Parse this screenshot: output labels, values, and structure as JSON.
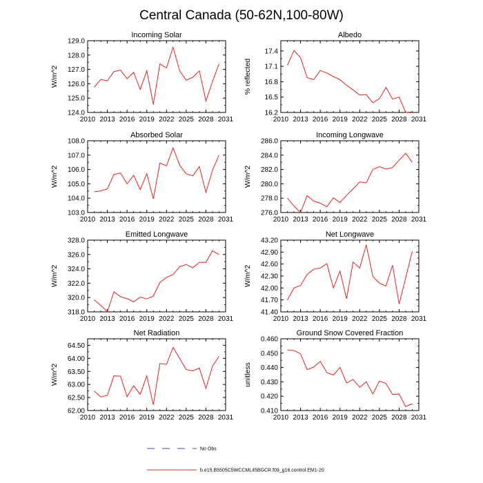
{
  "title": "Central Canada (50-62N,100-80W)",
  "chart_data": [
    {
      "type": "line",
      "title": "Incoming Solar",
      "ylabel": "W/m^2",
      "xlim": [
        2010,
        2031
      ],
      "ylim": [
        124.0,
        129.0
      ],
      "xticks": [
        2010,
        2013,
        2016,
        2019,
        2022,
        2025,
        2028,
        2031
      ],
      "yticks": [
        "124.0",
        "125.0",
        "126.0",
        "127.0",
        "128.0",
        "129.0"
      ],
      "x": [
        2011,
        2012,
        2013,
        2014,
        2015,
        2016,
        2017,
        2018,
        2019,
        2020,
        2021,
        2022,
        2023,
        2024,
        2025,
        2026,
        2027,
        2028,
        2029,
        2030
      ],
      "values": [
        125.75,
        126.3,
        126.2,
        126.85,
        126.95,
        126.35,
        126.8,
        125.6,
        126.9,
        124.55,
        127.4,
        127.1,
        128.55,
        126.9,
        126.25,
        126.45,
        126.9,
        124.8,
        126.15,
        127.4
      ]
    },
    {
      "type": "line",
      "title": "Albedo",
      "ylabel": "% reflected",
      "xlim": [
        2010,
        2031
      ],
      "ylim": [
        16.2,
        17.6
      ],
      "xticks": [
        2010,
        2013,
        2016,
        2019,
        2022,
        2025,
        2028,
        2031
      ],
      "yticks": [
        "16.2",
        "16.5",
        "16.8",
        "17.1",
        "17.4"
      ],
      "x": [
        2011,
        2012,
        2013,
        2014,
        2015,
        2016,
        2017,
        2018,
        2019,
        2020,
        2021,
        2022,
        2023,
        2024,
        2025,
        2026,
        2027,
        2028,
        2029,
        2030
      ],
      "values": [
        17.12,
        17.41,
        17.27,
        16.88,
        16.84,
        17.02,
        16.97,
        16.9,
        16.84,
        16.73,
        16.64,
        16.54,
        16.55,
        16.39,
        16.47,
        16.69,
        16.46,
        16.5,
        16.2,
        16.21
      ]
    },
    {
      "type": "line",
      "title": "Absorbed Solar",
      "ylabel": "W/m^2",
      "xlim": [
        2010,
        2031
      ],
      "ylim": [
        103.0,
        108.0
      ],
      "xticks": [
        2010,
        2013,
        2016,
        2019,
        2022,
        2025,
        2028,
        2031
      ],
      "yticks": [
        "103.0",
        "104.0",
        "105.0",
        "106.0",
        "107.0",
        "108.0"
      ],
      "x": [
        2011,
        2012,
        2013,
        2014,
        2015,
        2016,
        2017,
        2018,
        2019,
        2020,
        2021,
        2022,
        2023,
        2024,
        2025,
        2026,
        2027,
        2028,
        2029,
        2030
      ],
      "values": [
        104.45,
        104.5,
        104.65,
        105.65,
        105.75,
        105.0,
        105.6,
        104.6,
        105.7,
        103.95,
        106.45,
        106.25,
        107.5,
        106.3,
        105.7,
        105.55,
        106.2,
        104.4,
        105.95,
        107.0
      ]
    },
    {
      "type": "line",
      "title": "Incoming Longwave",
      "ylabel": "W/m^2",
      "xlim": [
        2010,
        2031
      ],
      "ylim": [
        276.0,
        286.0
      ],
      "xticks": [
        2010,
        2013,
        2016,
        2019,
        2022,
        2025,
        2028,
        2031
      ],
      "yticks": [
        "276.0",
        "278.0",
        "280.0",
        "282.0",
        "284.0",
        "286.0"
      ],
      "x": [
        2011,
        2012,
        2013,
        2014,
        2015,
        2016,
        2017,
        2018,
        2019,
        2020,
        2021,
        2022,
        2023,
        2024,
        2025,
        2026,
        2027,
        2028,
        2029,
        2030
      ],
      "values": [
        278.0,
        276.9,
        276.0,
        278.35,
        277.6,
        277.3,
        276.8,
        278.05,
        277.4,
        278.4,
        279.3,
        280.25,
        280.15,
        282.0,
        282.4,
        282.05,
        282.25,
        283.3,
        284.25,
        283.0
      ]
    },
    {
      "type": "line",
      "title": "Emitted Longwave",
      "ylabel": "W/m^2",
      "xlim": [
        2010,
        2031
      ],
      "ylim": [
        318.0,
        328.0
      ],
      "xticks": [
        2010,
        2013,
        2016,
        2019,
        2022,
        2025,
        2028,
        2031
      ],
      "yticks": [
        "318.0",
        "320.0",
        "322.0",
        "324.0",
        "326.0",
        "328.0"
      ],
      "x": [
        2011,
        2012,
        2013,
        2014,
        2015,
        2016,
        2017,
        2018,
        2019,
        2020,
        2021,
        2022,
        2023,
        2024,
        2025,
        2026,
        2027,
        2028,
        2029,
        2030
      ],
      "values": [
        319.7,
        318.9,
        318.0,
        320.8,
        320.1,
        319.85,
        319.4,
        320.05,
        319.8,
        320.2,
        322.1,
        322.8,
        323.2,
        324.3,
        324.6,
        324.15,
        324.9,
        324.9,
        326.5,
        326.0
      ]
    },
    {
      "type": "line",
      "title": "Net Longwave",
      "ylabel": "W/m^2",
      "xlim": [
        2010,
        2031
      ],
      "ylim": [
        41.4,
        43.2
      ],
      "xticks": [
        2010,
        2013,
        2016,
        2019,
        2022,
        2025,
        2028,
        2031
      ],
      "yticks": [
        "41.40",
        "41.70",
        "42.00",
        "42.30",
        "42.60",
        "42.90",
        "43.20"
      ],
      "x": [
        2011,
        2012,
        2013,
        2014,
        2015,
        2016,
        2017,
        2018,
        2019,
        2020,
        2021,
        2022,
        2023,
        2024,
        2025,
        2026,
        2027,
        2028,
        2029,
        2030
      ],
      "values": [
        41.7,
        42.0,
        42.06,
        42.34,
        42.47,
        42.5,
        42.61,
        42.0,
        42.42,
        41.73,
        42.65,
        42.5,
        43.08,
        42.29,
        42.12,
        42.05,
        42.57,
        41.6,
        42.25,
        42.92
      ]
    },
    {
      "type": "line",
      "title": "Net Radiation",
      "ylabel": "W/m^2",
      "xlim": [
        2010,
        2031
      ],
      "ylim": [
        62.0,
        64.75
      ],
      "xticks": [
        2010,
        2013,
        2016,
        2019,
        2022,
        2025,
        2028,
        2031
      ],
      "yticks": [
        "62.00",
        "62.50",
        "63.00",
        "63.50",
        "64.00",
        "64.50"
      ],
      "x": [
        2011,
        2012,
        2013,
        2014,
        2015,
        2016,
        2017,
        2018,
        2019,
        2020,
        2021,
        2022,
        2023,
        2024,
        2025,
        2026,
        2027,
        2028,
        2029,
        2030
      ],
      "values": [
        62.75,
        62.52,
        62.58,
        63.33,
        63.32,
        62.53,
        62.95,
        62.62,
        63.33,
        62.22,
        63.8,
        63.77,
        64.42,
        64.0,
        63.57,
        63.52,
        63.63,
        62.85,
        63.7,
        64.08
      ]
    },
    {
      "type": "line",
      "title": "Ground Snow Covered Fraction",
      "ylabel": "unitless",
      "xlim": [
        2010,
        2031
      ],
      "ylim": [
        0.41,
        0.46
      ],
      "xticks": [
        2010,
        2013,
        2016,
        2019,
        2022,
        2025,
        2028,
        2031
      ],
      "yticks": [
        "0.410",
        "0.420",
        "0.430",
        "0.440",
        "0.450",
        "0.460"
      ],
      "x": [
        2011,
        2012,
        2013,
        2014,
        2015,
        2016,
        2017,
        2018,
        2019,
        2020,
        2021,
        2022,
        2023,
        2024,
        2025,
        2026,
        2027,
        2028,
        2029,
        2030
      ],
      "values": [
        0.4521,
        0.4518,
        0.4495,
        0.4385,
        0.4402,
        0.4443,
        0.4365,
        0.4347,
        0.44,
        0.4292,
        0.4317,
        0.4262,
        0.43,
        0.4215,
        0.4306,
        0.4288,
        0.4212,
        0.4215,
        0.4128,
        0.4148
      ]
    }
  ],
  "legend": {
    "entries": [
      {
        "label": "No Obs",
        "style": "dashed",
        "color": "#4a3fbf"
      },
      {
        "label": "b.e15.B5505C5WCCML45BGCR.f09_g16.control.EM1-20",
        "style": "solid",
        "color": "#e8201e"
      }
    ]
  },
  "colors": {
    "series": "#e8201e",
    "axis": "#000000",
    "obs": "#4a3fbf"
  }
}
